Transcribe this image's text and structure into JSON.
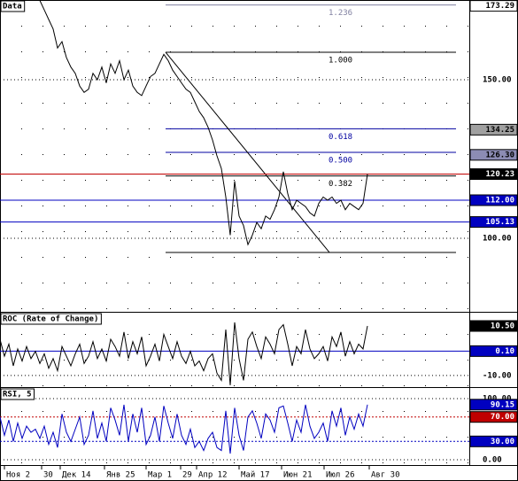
{
  "chart_data": [
    {
      "type": "line",
      "title": "Data",
      "color": "#000000",
      "values": [
        null,
        null,
        null,
        null,
        null,
        null,
        null,
        null,
        null,
        175,
        172,
        169,
        166,
        160,
        162,
        157,
        154,
        152,
        148,
        146,
        147,
        152,
        150,
        154,
        149,
        155,
        152,
        156,
        150,
        153,
        148,
        146,
        145,
        148,
        151,
        152,
        155,
        158,
        156,
        153,
        151,
        149,
        147,
        146,
        143,
        140,
        138,
        135,
        131,
        126,
        122,
        113,
        101,
        118,
        107,
        104,
        98,
        101,
        105,
        103,
        107,
        106,
        109,
        113,
        121,
        114,
        109,
        112,
        111,
        110,
        108,
        107,
        111,
        113,
        112,
        113,
        111,
        112,
        109,
        111,
        110,
        109,
        111,
        120.23
      ],
      "xlim": [
        0,
        106
      ],
      "ylim": [
        76.8,
        175.14
      ],
      "xticks": [
        {
          "value": 1,
          "label": "Ноя 2"
        },
        {
          "value": 9.4,
          "label": "30"
        },
        {
          "value": 13.6,
          "label": "Дек 14"
        },
        {
          "value": 23.6,
          "label": "Янв 25"
        },
        {
          "value": 33,
          "label": "Мар 1"
        },
        {
          "value": 40.8,
          "label": "29"
        },
        {
          "value": 44.4,
          "label": "Апр 12"
        },
        {
          "value": 54,
          "label": "Май 17"
        },
        {
          "value": 63.6,
          "label": "Июн 21"
        },
        {
          "value": 73.2,
          "label": "Июл 26"
        },
        {
          "value": 83.4,
          "label": "Авг 30"
        }
      ],
      "yticks": [
        {
          "value": 150,
          "label": "150.00"
        },
        {
          "value": 100,
          "label": "100.00"
        }
      ],
      "price_labels": [
        {
          "value": 173.29,
          "label": "173.29",
          "bg": "#ffffff",
          "fg": "#000000"
        },
        {
          "value": 134.25,
          "label": "134.25",
          "bg": "#a0a0a0",
          "fg": "#000000"
        },
        {
          "value": 126.3,
          "label": "126.30",
          "bg": "#8c8cb4",
          "fg": "#000000"
        },
        {
          "value": 120.23,
          "label": "120.23",
          "bg": "#000000",
          "fg": "#ffffff",
          "line": "#c00000"
        },
        {
          "value": 112,
          "label": "112.00",
          "bg": "#0000c0",
          "fg": "#ffffff",
          "line": "#0000c0"
        },
        {
          "value": 105.13,
          "label": "105.13",
          "bg": "#0000c0",
          "fg": "#ffffff",
          "line": "#0000c0"
        }
      ],
      "fib_levels": [
        {
          "price": 173.56,
          "ratio_label": "1.236",
          "color": "#8080a0"
        },
        {
          "price": 158.66,
          "ratio_label": "1.000",
          "color": "#000000"
        },
        {
          "price": 134.54,
          "ratio_label": "0.618",
          "color": "#0000a0"
        },
        {
          "price": 127.1,
          "ratio_label": "0.500",
          "color": "#0000a0"
        },
        {
          "price": 119.65,
          "ratio_label": "0.382",
          "color": "#000000"
        },
        {
          "price": 95.53,
          "color": "#000000"
        }
      ],
      "fib_range": [
        37.4,
        103
      ],
      "trendline": {
        "x": [
          37.4,
          74.4
        ],
        "y": [
          158.66,
          95.53
        ]
      }
    },
    {
      "type": "line",
      "title": "ROC (Rate of Change)",
      "color": "#000000",
      "values": [
        5,
        -2,
        3,
        -6,
        1,
        -4,
        2,
        -3,
        0,
        -5,
        -1,
        -7,
        -3,
        -8,
        2,
        -2,
        -6,
        -1,
        3,
        -5,
        -2,
        4,
        -3,
        1,
        -4,
        5,
        2,
        -2,
        8,
        -3,
        4,
        -1,
        6,
        -6,
        -2,
        3,
        -4,
        7,
        2,
        -3,
        4,
        -2,
        -5,
        0,
        -6,
        -4,
        -8,
        -3,
        -1,
        -9,
        -12,
        9,
        -14,
        12,
        -3,
        -12,
        5,
        8,
        2,
        -3,
        6,
        3,
        -1,
        9,
        11,
        3,
        -6,
        2,
        -1,
        9,
        1,
        -3,
        -1,
        2,
        -4,
        6,
        2,
        8,
        -2,
        4,
        -1,
        3,
        1,
        10.5
      ],
      "ylim": [
        -14.8,
        16
      ],
      "yticks": [
        {
          "value": -10,
          "label": "-10.00"
        }
      ],
      "price_labels": [
        {
          "value": 10.5,
          "label": "10.50",
          "bg": "#000000",
          "fg": "#ffffff"
        },
        {
          "value": 0.1,
          "label": "0.10",
          "bg": "#0000c0",
          "fg": "#ffffff",
          "line": "#0000c0"
        }
      ]
    },
    {
      "type": "line",
      "title": "RSI, 5",
      "color": "#0000c0",
      "values": [
        70,
        40,
        65,
        30,
        60,
        35,
        55,
        45,
        50,
        35,
        55,
        25,
        45,
        20,
        75,
        45,
        30,
        50,
        70,
        25,
        40,
        80,
        35,
        60,
        30,
        85,
        65,
        40,
        90,
        30,
        75,
        45,
        85,
        25,
        40,
        70,
        30,
        88,
        60,
        35,
        75,
        40,
        25,
        50,
        20,
        30,
        15,
        35,
        45,
        20,
        15,
        80,
        10,
        85,
        40,
        15,
        70,
        80,
        60,
        35,
        75,
        65,
        45,
        85,
        88,
        60,
        30,
        65,
        45,
        90,
        55,
        35,
        45,
        60,
        30,
        80,
        55,
        85,
        40,
        70,
        50,
        75,
        55,
        90.15
      ],
      "ylim": [
        -8.7,
        117.4
      ],
      "yticks": [
        {
          "value": 100,
          "label": "100.00"
        },
        {
          "value": 0,
          "label": "0.00"
        }
      ],
      "price_labels": [
        {
          "value": 90.15,
          "label": "90.15",
          "bg": "#0000c0",
          "fg": "#ffffff"
        },
        {
          "value": 70,
          "label": "70.00",
          "bg": "#c00000",
          "fg": "#ffffff",
          "line": "#c00000",
          "dash": true
        },
        {
          "value": 30,
          "label": "30.00",
          "bg": "#0000c0",
          "fg": "#ffffff",
          "line": "#0000c0",
          "dash": true
        }
      ]
    }
  ]
}
